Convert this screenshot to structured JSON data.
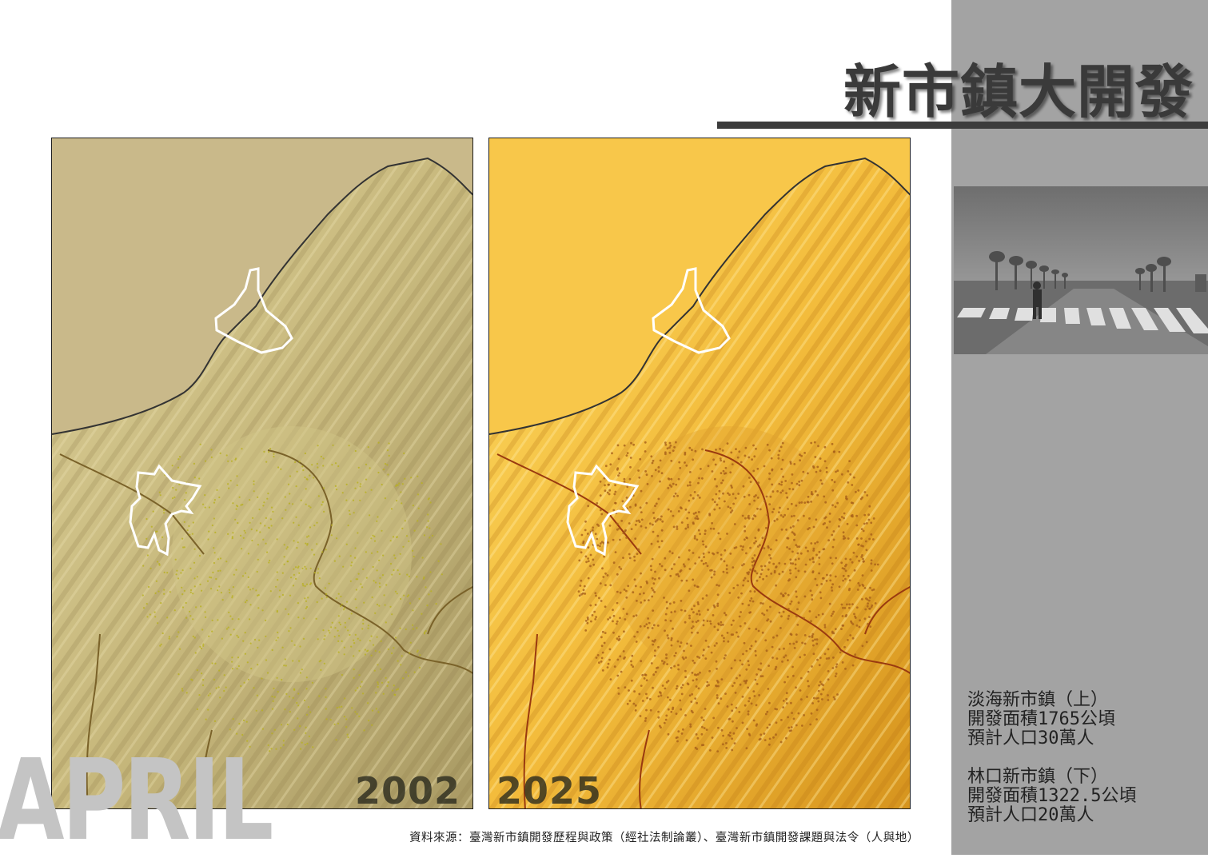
{
  "title": "新市鎮大開發",
  "maps": {
    "left": {
      "year": "2002",
      "bg": "#c9b98a",
      "dot_color": "#b8b020"
    },
    "right": {
      "year": "2025",
      "bg": "#f8c74a",
      "dot_color": "#a8601a"
    }
  },
  "info": {
    "tamsui": {
      "line1": "淡海新市鎮（上）",
      "line2": "開發面積1765公頃",
      "line3": "預計人口30萬人"
    },
    "linkou": {
      "line1": "林口新市鎮（下）",
      "line2": "開發面積1322.5公頃",
      "line3": "預計人口20萬人"
    }
  },
  "watermark": "APRIL",
  "source": "資料來源：臺灣新市鎮開發歷程與政策（經社法制論叢）、臺灣新市鎮開發課題與法令（人與地）",
  "colors": {
    "sidebar": "#a3a3a3",
    "title": "#3a3a3a",
    "rule": "#3c3c3c"
  }
}
